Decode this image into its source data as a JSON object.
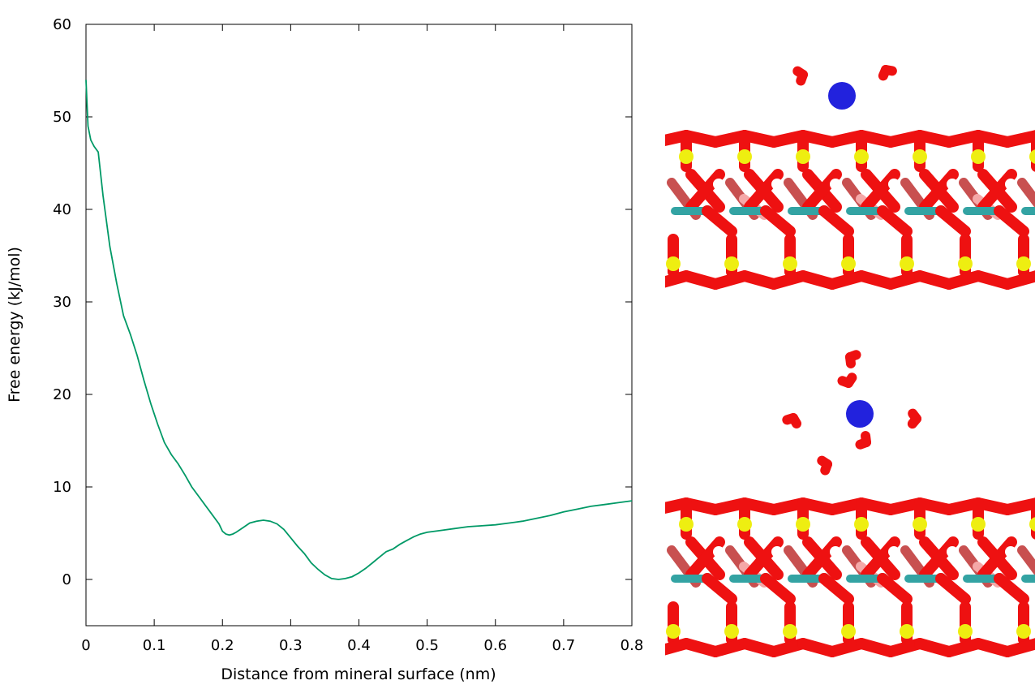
{
  "chart_data": {
    "type": "line",
    "title": "",
    "xlabel": "Distance from mineral surface (nm)",
    "ylabel": "Free energy (kJ/mol)",
    "xlim": [
      0,
      0.8
    ],
    "ylim": [
      -5,
      60
    ],
    "xticks": [
      0,
      0.1,
      0.2,
      0.3,
      0.4,
      0.5,
      0.6,
      0.7,
      0.8
    ],
    "xtick_labels": [
      "0",
      "0.1",
      "0.2",
      "0.3",
      "0.4",
      "0.5",
      "0.6",
      "0.7",
      "0.8"
    ],
    "yticks": [
      0,
      10,
      20,
      30,
      40,
      50,
      60
    ],
    "ytick_labels": [
      "0",
      "10",
      "20",
      "30",
      "40",
      "50",
      "60"
    ],
    "grid": false,
    "legend": "none",
    "series": [
      {
        "color": "#009966",
        "x": [
          0,
          0.003,
          0.007,
          0.012,
          0.018,
          0.025,
          0.035,
          0.045,
          0.055,
          0.065,
          0.075,
          0.085,
          0.095,
          0.105,
          0.115,
          0.125,
          0.135,
          0.145,
          0.155,
          0.165,
          0.175,
          0.185,
          0.195,
          0.2,
          0.205,
          0.21,
          0.215,
          0.22,
          0.23,
          0.24,
          0.25,
          0.26,
          0.27,
          0.28,
          0.29,
          0.3,
          0.31,
          0.32,
          0.33,
          0.34,
          0.35,
          0.36,
          0.37,
          0.38,
          0.39,
          0.4,
          0.41,
          0.42,
          0.43,
          0.44,
          0.45,
          0.46,
          0.47,
          0.48,
          0.49,
          0.5,
          0.52,
          0.54,
          0.56,
          0.58,
          0.6,
          0.62,
          0.64,
          0.66,
          0.68,
          0.7,
          0.72,
          0.74,
          0.76,
          0.78,
          0.8
        ],
        "y": [
          54,
          49,
          47.5,
          46.8,
          46.2,
          41.5,
          36,
          32,
          28.5,
          26.5,
          24.2,
          21.5,
          19,
          16.8,
          14.8,
          13.5,
          12.5,
          11.3,
          10,
          9,
          8,
          7,
          6,
          5.2,
          4.9,
          4.8,
          4.9,
          5.1,
          5.6,
          6.1,
          6.3,
          6.4,
          6.3,
          6.0,
          5.4,
          4.5,
          3.6,
          2.8,
          1.8,
          1.1,
          0.5,
          0.1,
          0.0,
          0.1,
          0.3,
          0.7,
          1.2,
          1.8,
          2.4,
          3.0,
          3.3,
          3.8,
          4.2,
          4.6,
          4.9,
          5.1,
          5.3,
          5.5,
          5.7,
          5.8,
          5.9,
          6.1,
          6.3,
          6.6,
          6.9,
          7.3,
          7.6,
          7.9,
          8.1,
          8.3,
          8.5
        ]
      }
    ]
  },
  "molecular_images": {
    "colors": {
      "oxygen": "#ee1111",
      "silicon": "#eeee11",
      "hydrogen": "#ffffff",
      "aluminum": "#33a3a3",
      "substituted": "#f4a8a8",
      "ion": "#2222dd"
    }
  }
}
